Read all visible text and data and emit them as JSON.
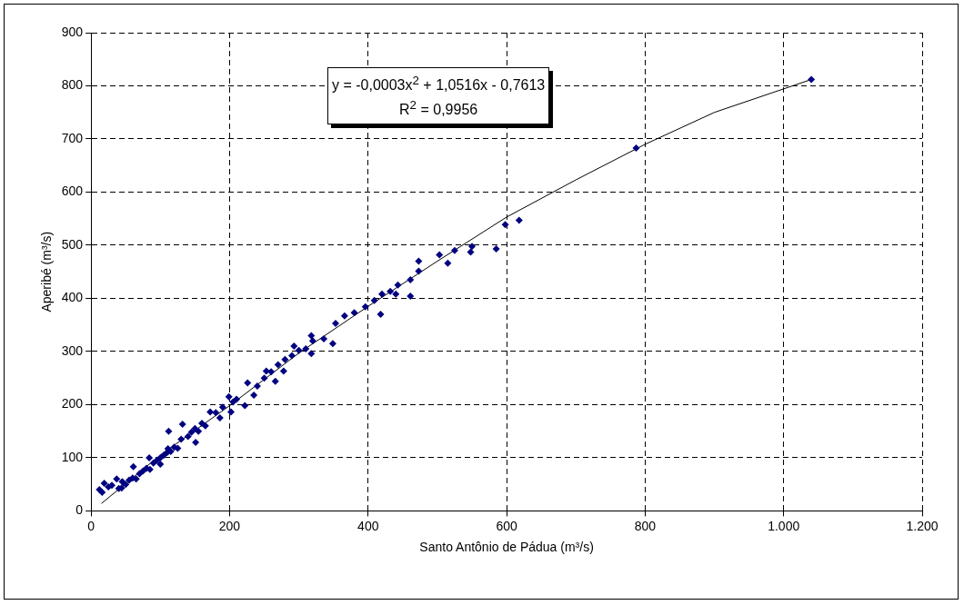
{
  "chart_data": {
    "type": "scatter",
    "xlabel": "Santo Antônio de Pádua (m³/s)",
    "ylabel": "Aperibé (m³/s)",
    "xlim": [
      0,
      1200
    ],
    "xticks": [
      0,
      200,
      400,
      600,
      800,
      {
        "value": 1000,
        "label": "1.000"
      },
      {
        "value": 1200,
        "label": "1.200"
      }
    ],
    "ylim": [
      0,
      900
    ],
    "yticks": [
      0,
      100,
      200,
      300,
      400,
      500,
      600,
      700,
      800,
      900
    ],
    "grid": true,
    "legend": false,
    "marker": "diamond",
    "annotations": [
      "y = -0,0003x$^{2}$ + 1,0516x - 0,7613",
      "R$^{2}$ = 0,9956"
    ],
    "series": [
      {
        "color": "#000080",
        "x": [
          12,
          16,
          19,
          25,
          30,
          37,
          40,
          44,
          45,
          50,
          55,
          60,
          61,
          65,
          70,
          75,
          80,
          84,
          85,
          90,
          95,
          100,
          100,
          105,
          110,
          111,
          112,
          115,
          120,
          125,
          130,
          132,
          140,
          145,
          150,
          151,
          155,
          160,
          165,
          172,
          180,
          186,
          190,
          199,
          202,
          205,
          210,
          222,
          226,
          235,
          240,
          250,
          253,
          260,
          266,
          270,
          278,
          280,
          290,
          293,
          300,
          310,
          318,
          318,
          320,
          336,
          349,
          353,
          366,
          380,
          396,
          409,
          418,
          420,
          432,
          440,
          443,
          461,
          461,
          473,
          473,
          503,
          515,
          525,
          548,
          550,
          585,
          598,
          618,
          787,
          1040
        ],
        "values": [
          40,
          35,
          52,
          45,
          48,
          60,
          42,
          43,
          55,
          50,
          58,
          62,
          83,
          60,
          70,
          75,
          80,
          100,
          78,
          90,
          95,
          100,
          88,
          105,
          110,
          117,
          150,
          112,
          120,
          118,
          135,
          163,
          140,
          148,
          155,
          129,
          150,
          165,
          160,
          186,
          185,
          175,
          195,
          215,
          186,
          205,
          210,
          198,
          241,
          218,
          235,
          250,
          263,
          262,
          244,
          275,
          263,
          285,
          292,
          310,
          302,
          305,
          330,
          296,
          320,
          324,
          315,
          353,
          367,
          373,
          384,
          396,
          370,
          408,
          413,
          408,
          425,
          404,
          435,
          451,
          470,
          482,
          466,
          490,
          487,
          498,
          493,
          539,
          547,
          683,
          812
        ]
      },
      {
        "type": "line",
        "color": "#000000",
        "marker": "none",
        "x": [
          15,
          100,
          200,
          300,
          400,
          500,
          600,
          700,
          800,
          900,
          1040
        ],
        "values": [
          14,
          105,
          198,
          297,
          385,
          470,
          553,
          623,
          690,
          750,
          812
        ]
      }
    ]
  }
}
